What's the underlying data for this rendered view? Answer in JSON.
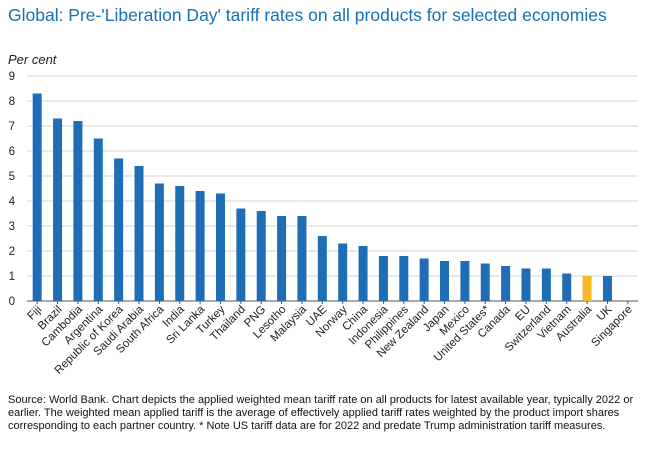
{
  "chart_data": {
    "type": "bar",
    "title": "Global: Pre-'Liberation Day' tariff rates on all products for selected economies",
    "ylabel": "Per cent",
    "xlabel": "",
    "ylim": [
      0,
      9
    ],
    "yticks": [
      0,
      1,
      2,
      3,
      4,
      5,
      6,
      7,
      8,
      9
    ],
    "grid": true,
    "categories": [
      "Fiji",
      "Brazil",
      "Cambodia",
      "Argentina",
      "Republic of Korea",
      "Saudi Arabia",
      "South Africa",
      "India",
      "Sri Lanka",
      "Turkey",
      "Thailand",
      "PNG",
      "Lesotho",
      "Malaysia",
      "UAE",
      "Norway",
      "China",
      "Indonesia",
      "Philippines",
      "New Zealand",
      "Japan",
      "Mexico",
      "United States*",
      "Canada",
      "EU",
      "Switzerland",
      "Vietnam",
      "Australia",
      "UK",
      "Singapore"
    ],
    "values": [
      8.3,
      7.3,
      7.2,
      6.5,
      5.7,
      5.4,
      4.7,
      4.6,
      4.4,
      4.3,
      3.7,
      3.6,
      3.4,
      3.4,
      2.6,
      2.3,
      2.2,
      1.8,
      1.8,
      1.7,
      1.6,
      1.6,
      1.5,
      1.4,
      1.3,
      1.3,
      1.1,
      1.0,
      1.0,
      0.0
    ],
    "highlight": "Australia",
    "colors": {
      "bar": "#1f6db5",
      "highlight": "#f7b825",
      "grid": "#d4d4d4",
      "axis": "#555555",
      "title": "#1a6fb5"
    }
  },
  "source_note": "Source: World Bank. Chart depicts the applied weighted mean tariff rate on all products for latest available year, typically 2022 or earlier. The weighted mean applied tariff is the average of effectively applied tariff rates weighted by the product import shares corresponding to each partner country. * Note US tariff data are for 2022 and predate Trump administration tariff measures."
}
